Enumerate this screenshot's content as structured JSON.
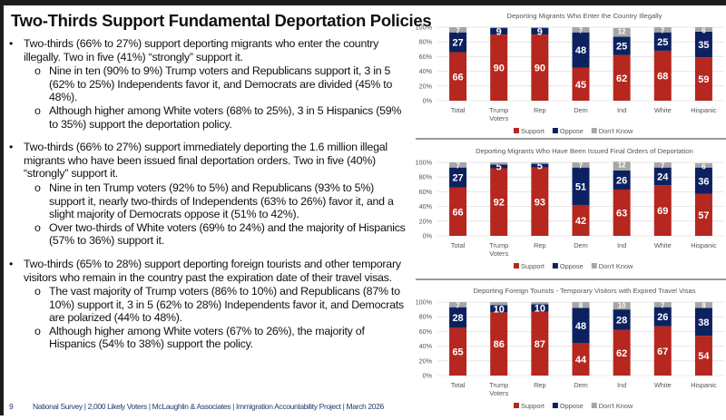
{
  "title": "Two-Thirds Support Fundamental Deportation Policies",
  "sections": [
    {
      "main": "Two-thirds (66% to 27%) support deporting migrants who enter the country illegally. Two in five (41%) “strongly” support it.",
      "subs": [
        "Nine in ten (90% to 9%) Trump voters and Republicans support it, 3 in 5 (62% to 25%) Independents favor it, and Democrats are divided (45% to 48%).",
        "Although higher among White voters (68% to 25%), 3 in 5 Hispanics (59% to 35%) support the deportation policy."
      ]
    },
    {
      "main": "Two-thirds (66% to 27%) support immediately deporting the 1.6 million illegal migrants who have been issued final deportation orders. Two in five (40%) “strongly” support it.",
      "subs": [
        "Nine in ten Trump voters (92% to 5%) and Republicans (93% to 5%) support it, nearly two-thirds of Independents (63% to 26%) favor it, and a slight majority of Democrats oppose it (51% to 42%).",
        "Over two-thirds of White voters (69% to 24%) and the majority of Hispanics (57% to 36%) support it."
      ]
    },
    {
      "main": "Two-thirds (65% to 28%) support deporting foreign tourists and other temporary visitors who remain in the country past the expiration date of their travel visas.",
      "subs": [
        "The vast majority of Trump voters (86% to 10%) and Republicans (87% to 10%) support it, 3 in 5 (62% to 28%) Independents favor it, and Democrats are polarized (44% to 48%).",
        "Although higher among White voters (67% to 26%), the majority of Hispanics (54% to 38%) support the policy."
      ]
    }
  ],
  "footer": {
    "page": "9",
    "text": "National Survey | 2,000 Likely Voters | McLaughlin & Associates | Immigration Accountability Project | March 2026"
  },
  "colors": {
    "support": "#b5271f",
    "oppose": "#0d2160",
    "dont_know": "#a6a6a6",
    "footer": "#1d3b6b"
  },
  "chart_data": [
    {
      "type": "bar",
      "stacked": true,
      "title": "Deporting Migrants Who Enter the Country Illegally",
      "categories": [
        "Total",
        "Trump Voters",
        "Rep",
        "Dem",
        "Ind",
        "White",
        "Hispanic"
      ],
      "yticks": [
        "0%",
        "20%",
        "40%",
        "60%",
        "80%",
        "100%"
      ],
      "ylim": [
        0,
        100
      ],
      "grid": true,
      "legend": "bottom",
      "series": [
        {
          "name": "Support",
          "values": [
            66,
            90,
            90,
            45,
            62,
            68,
            59
          ]
        },
        {
          "name": "Oppose",
          "values": [
            27,
            9,
            9,
            48,
            25,
            25,
            35
          ]
        },
        {
          "name": "Don't Know",
          "values": [
            7,
            null,
            null,
            7,
            12,
            7,
            6
          ]
        }
      ]
    },
    {
      "type": "bar",
      "stacked": true,
      "title": "Deporting Migrants Who Have Been Issued Final Orders of Deportation",
      "categories": [
        "Total",
        "Trump Voters",
        "Rep",
        "Dem",
        "Ind",
        "White",
        "Hispanic"
      ],
      "yticks": [
        "0%",
        "20%",
        "40%",
        "60%",
        "80%",
        "100%"
      ],
      "ylim": [
        0,
        100
      ],
      "grid": true,
      "legend": "bottom",
      "series": [
        {
          "name": "Support",
          "values": [
            66,
            92,
            93,
            42,
            63,
            69,
            57
          ]
        },
        {
          "name": "Oppose",
          "values": [
            27,
            5,
            5,
            51,
            26,
            24,
            36
          ]
        },
        {
          "name": "Don't Know",
          "values": [
            7,
            null,
            null,
            7,
            12,
            7,
            6
          ]
        }
      ]
    },
    {
      "type": "bar",
      "stacked": true,
      "title": "Deporting Foreign Tourists - Temporary Visitors with Expired Travel Visas",
      "categories": [
        "Total",
        "Trump Voters",
        "Rep",
        "Dem",
        "Ind",
        "White",
        "Hispanic"
      ],
      "yticks": [
        "0%",
        "20%",
        "40%",
        "60%",
        "80%",
        "100%"
      ],
      "ylim": [
        0,
        100
      ],
      "grid": true,
      "legend": "bottom",
      "series": [
        {
          "name": "Support",
          "values": [
            65,
            86,
            87,
            44,
            62,
            67,
            54
          ]
        },
        {
          "name": "Oppose",
          "values": [
            28,
            10,
            10,
            48,
            28,
            26,
            38
          ]
        },
        {
          "name": "Don't Know",
          "values": [
            7,
            null,
            null,
            8,
            10,
            7,
            8
          ]
        }
      ]
    }
  ]
}
